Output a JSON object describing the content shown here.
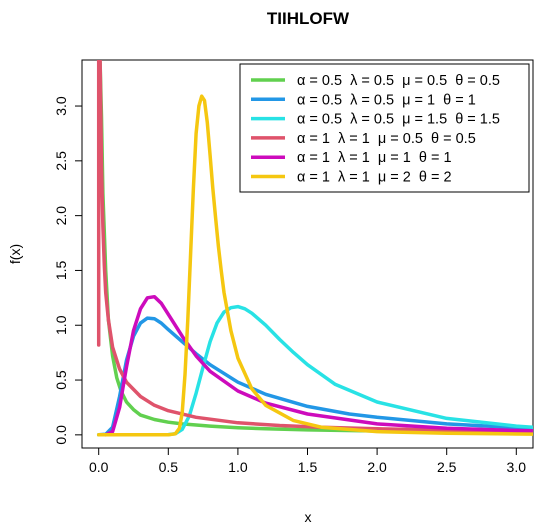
{
  "chart_data": {
    "type": "line",
    "title": "TIIHLOFW",
    "xlabel": "x",
    "ylabel": "f(x)",
    "xlim": [
      -0.12,
      3.12
    ],
    "ylim": [
      -0.12,
      3.42
    ],
    "x_ticks": [
      "0.0",
      "0.5",
      "1.0",
      "1.5",
      "2.0",
      "2.5",
      "3.0"
    ],
    "x_tick_values": [
      0,
      0.5,
      1,
      1.5,
      2,
      2.5,
      3
    ],
    "y_ticks": [
      "0.0",
      "0.5",
      "1.0",
      "1.5",
      "2.0",
      "2.5",
      "3.0"
    ],
    "y_tick_values": [
      0,
      0.5,
      1,
      1.5,
      2,
      2.5,
      3
    ],
    "grid": false,
    "legend_position": "top-right",
    "series": [
      {
        "name": "α = 0.5  λ = 0.5  μ = 0.5  θ = 0.5",
        "color": "#61d04f",
        "x": [
          0.01,
          0.02,
          0.03,
          0.05,
          0.07,
          0.1,
          0.13,
          0.16,
          0.2,
          0.25,
          0.3,
          0.4,
          0.5,
          0.6,
          0.8,
          1.0,
          1.2,
          1.5,
          2.0,
          2.5,
          3.0,
          3.12
        ],
        "y": [
          3.4,
          2.9,
          2.2,
          1.5,
          1.05,
          0.72,
          0.52,
          0.4,
          0.3,
          0.23,
          0.18,
          0.14,
          0.115,
          0.1,
          0.08,
          0.065,
          0.055,
          0.045,
          0.035,
          0.028,
          0.023,
          0.022
        ]
      },
      {
        "name": "α = 0.5  λ = 0.5  μ = 1  θ = 1",
        "color": "#2297e6",
        "x": [
          0.0,
          0.05,
          0.1,
          0.15,
          0.2,
          0.25,
          0.3,
          0.35,
          0.4,
          0.45,
          0.5,
          0.6,
          0.7,
          0.8,
          1.0,
          1.2,
          1.5,
          1.8,
          2.0,
          2.5,
          3.0,
          3.12
        ],
        "y": [
          0.0,
          0.005,
          0.07,
          0.35,
          0.68,
          0.9,
          1.02,
          1.065,
          1.06,
          1.02,
          0.96,
          0.85,
          0.74,
          0.64,
          0.48,
          0.37,
          0.26,
          0.19,
          0.16,
          0.1,
          0.065,
          0.06
        ]
      },
      {
        "name": "α = 0.5  λ = 0.5  μ = 1.5  θ = 1.5",
        "color": "#28e2e5",
        "x": [
          0.0,
          0.4,
          0.5,
          0.55,
          0.6,
          0.65,
          0.7,
          0.75,
          0.8,
          0.85,
          0.9,
          0.95,
          1.0,
          1.05,
          1.1,
          1.2,
          1.3,
          1.4,
          1.5,
          1.7,
          2.0,
          2.5,
          3.0,
          3.12
        ],
        "y": [
          0.0,
          0.0,
          0.002,
          0.01,
          0.05,
          0.17,
          0.38,
          0.62,
          0.85,
          1.02,
          1.12,
          1.16,
          1.17,
          1.15,
          1.11,
          1.0,
          0.87,
          0.75,
          0.64,
          0.46,
          0.3,
          0.15,
          0.08,
          0.07
        ]
      },
      {
        "name": "α = 1  λ = 1  μ = 0.5  θ = 0.5",
        "color": "#df536b",
        "x": [
          0.0,
          0.0,
          0.005,
          0.01,
          0.015,
          0.02,
          0.03,
          0.04,
          0.05,
          0.07,
          0.1,
          0.15,
          0.2,
          0.3,
          0.4,
          0.5,
          0.7,
          1.0,
          1.3,
          1.6,
          2.0,
          2.5,
          3.0,
          3.12
        ],
        "y": [
          0.82,
          3.42,
          3.42,
          3.42,
          2.95,
          2.45,
          1.9,
          1.55,
          1.3,
          1.05,
          0.8,
          0.6,
          0.48,
          0.35,
          0.27,
          0.22,
          0.16,
          0.11,
          0.085,
          0.07,
          0.055,
          0.043,
          0.035,
          0.033
        ]
      },
      {
        "name": "α = 1  λ = 1  μ = 1  θ = 1",
        "color": "#cd0bbc",
        "x": [
          0.05,
          0.1,
          0.15,
          0.2,
          0.25,
          0.3,
          0.35,
          0.4,
          0.45,
          0.5,
          0.6,
          0.7,
          0.8,
          1.0,
          1.2,
          1.5,
          2.0,
          2.5,
          3.0,
          3.12
        ],
        "y": [
          0.0,
          0.03,
          0.25,
          0.62,
          0.95,
          1.15,
          1.25,
          1.26,
          1.2,
          1.1,
          0.9,
          0.72,
          0.58,
          0.4,
          0.29,
          0.19,
          0.1,
          0.06,
          0.04,
          0.037
        ]
      },
      {
        "name": "α = 1  λ = 1  μ = 2  θ = 2",
        "color": "#f5c710",
        "x": [
          0.0,
          0.5,
          0.55,
          0.58,
          0.6,
          0.62,
          0.64,
          0.66,
          0.68,
          0.7,
          0.72,
          0.74,
          0.76,
          0.78,
          0.8,
          0.82,
          0.84,
          0.86,
          0.88,
          0.9,
          0.95,
          1.0,
          1.1,
          1.2,
          1.4,
          1.6,
          2.0,
          2.5,
          3.0,
          3.12
        ],
        "y": [
          0.0,
          0.0,
          0.01,
          0.06,
          0.2,
          0.55,
          1.05,
          1.65,
          2.25,
          2.75,
          3.0,
          3.09,
          3.05,
          2.85,
          2.55,
          2.25,
          1.98,
          1.72,
          1.5,
          1.3,
          0.95,
          0.7,
          0.42,
          0.27,
          0.13,
          0.07,
          0.03,
          0.015,
          0.008,
          0.007
        ]
      }
    ]
  }
}
